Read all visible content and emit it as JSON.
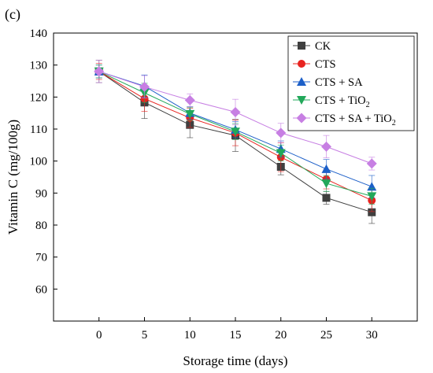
{
  "chart_data": {
    "type": "line",
    "panel_label": "(c)",
    "title": "",
    "xlabel": "Storage time (days)",
    "ylabel": "Vitamin C (mg/100g)",
    "xlim": [
      -5,
      35
    ],
    "ylim": [
      50,
      140
    ],
    "x": [
      0,
      5,
      10,
      15,
      20,
      25,
      30
    ],
    "xticks": [
      "0",
      "5",
      "10",
      "15",
      "20",
      "25",
      "30"
    ],
    "yticks": [
      "60",
      "70",
      "80",
      "90",
      "100",
      "110",
      "120",
      "130",
      "140"
    ],
    "grid": false,
    "legend_position": "top-right",
    "series": [
      {
        "name": "CK",
        "legend_parts": [
          "CK"
        ],
        "color": "#3f3f3f",
        "marker": "square",
        "values": [
          128.0,
          118.3,
          111.3,
          108.0,
          98.2,
          88.5,
          84.0
        ],
        "errors": [
          3.5,
          5.0,
          4.0,
          5.0,
          2.5,
          2.0,
          3.5
        ]
      },
      {
        "name": "CTS",
        "legend_parts": [
          "CTS"
        ],
        "color": "#e8231f",
        "marker": "circle",
        "values": [
          128.0,
          119.5,
          113.5,
          108.8,
          101.2,
          94.3,
          87.7
        ],
        "errors": [
          2.5,
          4.0,
          3.0,
          4.0,
          4.5,
          3.0,
          3.5
        ]
      },
      {
        "name": "CTS + SA",
        "legend_parts": [
          "CTS + SA"
        ],
        "color": "#1c5fc8",
        "marker": "triangle-up",
        "values": [
          128.0,
          123.4,
          115.0,
          109.8,
          103.8,
          97.5,
          92.0
        ],
        "errors": [
          2.0,
          3.5,
          2.0,
          2.5,
          2.5,
          3.0,
          3.5
        ]
      },
      {
        "name": "CTS + TiO2",
        "legend_parts": [
          "CTS + TiO",
          "2",
          ""
        ],
        "color": "#22a85a",
        "marker": "triangle-down",
        "values": [
          128.0,
          121.3,
          114.7,
          109.2,
          102.5,
          93.0,
          89.0
        ],
        "errors": [
          2.0,
          3.0,
          2.0,
          2.5,
          2.5,
          2.5,
          2.5
        ]
      },
      {
        "name": "CTS + SA + TiO2",
        "legend_parts": [
          "CTS + SA + TiO",
          "2",
          ""
        ],
        "color": "#c77fe3",
        "marker": "diamond",
        "values": [
          128.0,
          123.2,
          119.0,
          115.3,
          108.8,
          104.5,
          99.2
        ],
        "errors": [
          3.5,
          3.5,
          2.0,
          4.0,
          3.0,
          3.5,
          2.0
        ]
      }
    ]
  }
}
